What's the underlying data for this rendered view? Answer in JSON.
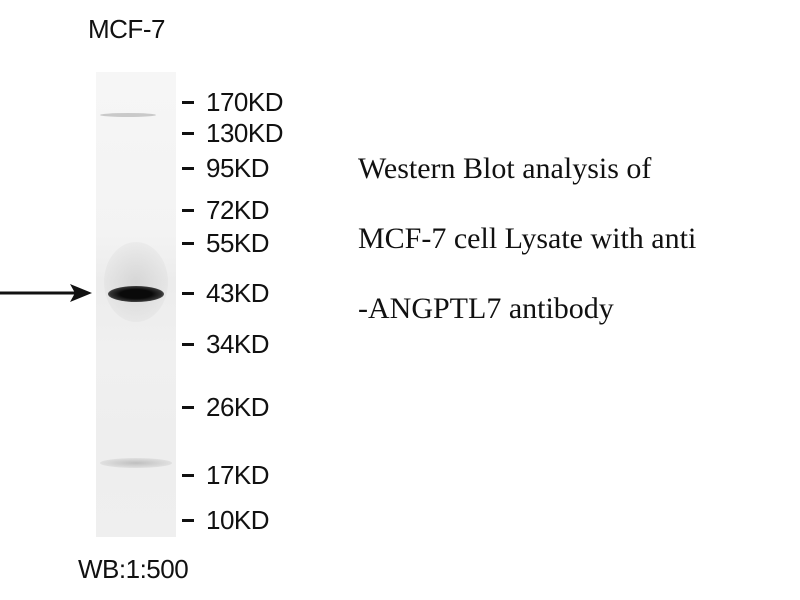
{
  "lane_label": "MCF-7",
  "markers": [
    "170KD",
    "130KD",
    "95KD",
    "72KD",
    "55KD",
    "43KD",
    "34KD",
    "26KD",
    "17KD",
    "10KD"
  ],
  "description": [
    "Western Blot analysis of",
    "MCF-7 cell Lysate with anti",
    "-ANGPTL7 antibody"
  ],
  "dilution": "WB:1:500",
  "band_marker": "43KD",
  "arrow_icon": "right-arrow-icon"
}
